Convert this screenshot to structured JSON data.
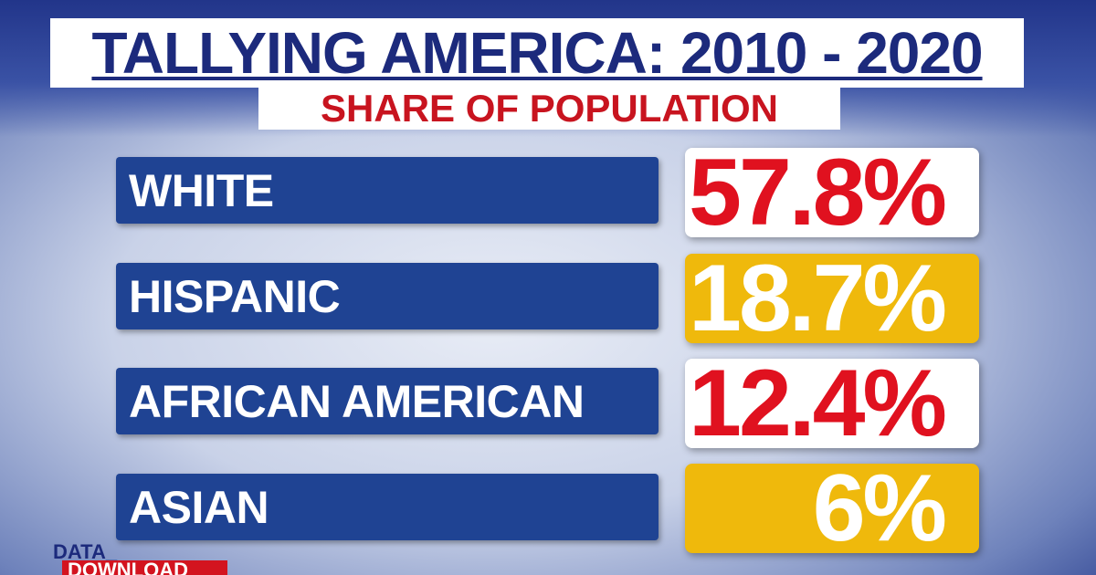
{
  "header": {
    "title": "TALLYING AMERICA: 2010 - 2020",
    "subtitle": "SHARE OF POPULATION"
  },
  "rows": [
    {
      "label": "WHITE",
      "value": "57.8%",
      "box_color": "#ffffff",
      "text_color": "#e0111f"
    },
    {
      "label": "HISPANIC",
      "value": "18.7%",
      "box_color": "#efb90c",
      "text_color": "#ffffff"
    },
    {
      "label": "AFRICAN AMERICAN",
      "value": "12.4%",
      "box_color": "#ffffff",
      "text_color": "#e0111f"
    },
    {
      "label": "ASIAN",
      "value": "6%",
      "box_color": "#efb90c",
      "text_color": "#ffffff"
    }
  ],
  "logo": {
    "line1": "DATA_",
    "line2": "DOWNLOAD"
  }
}
